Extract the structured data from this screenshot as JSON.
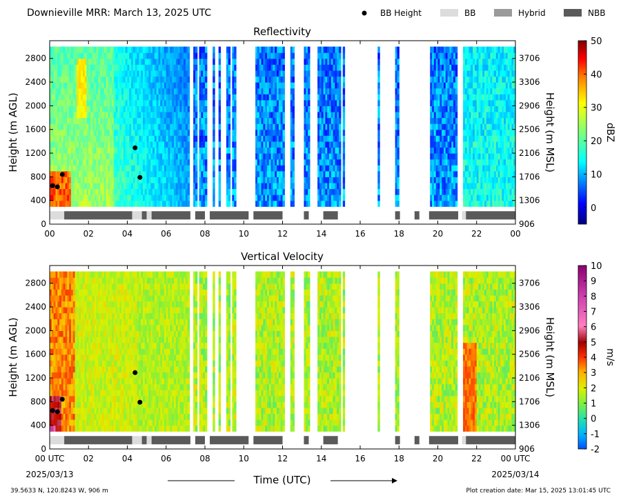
{
  "header": {
    "title": "Downieville MRR:  March 13, 2025 UTC",
    "legend": [
      {
        "label": "BB Height",
        "kind": "dot",
        "color": "#000000"
      },
      {
        "label": "BB",
        "kind": "bar",
        "color": "#dcdcdc"
      },
      {
        "label": "Hybrid",
        "kind": "bar",
        "color": "#9a9a9a"
      },
      {
        "label": "NBB",
        "kind": "bar",
        "color": "#5a5a5a"
      }
    ]
  },
  "footer": {
    "location": "39.5633 N, 120.8243 W, 906 m",
    "created": "Plot creation date: Mar 15, 2025 13:01:45 UTC",
    "xlabel": "Time (UTC)",
    "start_date": "2025/03/13",
    "end_date": "2025/03/14"
  },
  "chart_data": [
    {
      "type": "heatmap",
      "title": "Reflectivity",
      "xlabel": "",
      "ylabel": "Height (m AGL)",
      "ylabel_right": "Height (m MSL)",
      "x_ticks": [
        "00",
        "02",
        "04",
        "06",
        "08",
        "10",
        "12",
        "14",
        "16",
        "18",
        "20",
        "22",
        "00"
      ],
      "xlim_hours": [
        0,
        24
      ],
      "y_ticks": [
        0,
        400,
        800,
        1200,
        1600,
        2000,
        2400,
        2800
      ],
      "ylim": [
        0,
        3100
      ],
      "y_ticks_right": [
        906,
        1306,
        1706,
        2106,
        2506,
        2906,
        3306,
        3706
      ],
      "colorbar": {
        "label": "dBZ",
        "min": -5,
        "max": 50,
        "ticks": [
          0,
          10,
          20,
          30,
          40,
          50
        ],
        "colormap": "jet"
      },
      "bb_height_points": [
        {
          "hour": 0.15,
          "height": 650
        },
        {
          "hour": 0.4,
          "height": 630
        },
        {
          "hour": 0.65,
          "height": 840
        },
        {
          "hour": 4.4,
          "height": 1290
        },
        {
          "hour": 4.65,
          "height": 790
        }
      ],
      "classification": [
        {
          "start": 0.0,
          "end": 0.75,
          "class": "BB"
        },
        {
          "start": 0.75,
          "end": 4.25,
          "class": "NBB"
        },
        {
          "start": 4.25,
          "end": 4.75,
          "class": "BB"
        },
        {
          "start": 4.75,
          "end": 5.0,
          "class": "NBB"
        },
        {
          "start": 5.0,
          "end": 5.25,
          "class": "BB"
        },
        {
          "start": 5.25,
          "end": 7.25,
          "class": "NBB"
        },
        {
          "start": 7.5,
          "end": 8.0,
          "class": "NBB"
        },
        {
          "start": 8.25,
          "end": 10.25,
          "class": "NBB"
        },
        {
          "start": 10.5,
          "end": 12.0,
          "class": "NBB"
        },
        {
          "start": 13.1,
          "end": 13.35,
          "class": "NBB"
        },
        {
          "start": 14.1,
          "end": 14.85,
          "class": "NBB"
        },
        {
          "start": 17.8,
          "end": 18.05,
          "class": "NBB"
        },
        {
          "start": 18.8,
          "end": 19.05,
          "class": "NBB"
        },
        {
          "start": 19.55,
          "end": 21.05,
          "class": "NBB"
        },
        {
          "start": 21.25,
          "end": 21.45,
          "class": "BB"
        },
        {
          "start": 21.45,
          "end": 24.0,
          "class": "NBB"
        }
      ],
      "coverage": [
        {
          "start": 0.0,
          "end": 7.15
        },
        {
          "start": 7.4,
          "end": 7.55
        },
        {
          "start": 7.7,
          "end": 8.05
        },
        {
          "start": 8.35,
          "end": 8.5
        },
        {
          "start": 8.65,
          "end": 8.8
        },
        {
          "start": 9.05,
          "end": 9.25
        },
        {
          "start": 9.4,
          "end": 9.55
        },
        {
          "start": 10.55,
          "end": 12.05
        },
        {
          "start": 12.4,
          "end": 12.55
        },
        {
          "start": 13.05,
          "end": 13.35
        },
        {
          "start": 13.8,
          "end": 14.95
        },
        {
          "start": 15.1,
          "end": 15.2
        },
        {
          "start": 16.9,
          "end": 17.0
        },
        {
          "start": 17.75,
          "end": 18.0
        },
        {
          "start": 19.6,
          "end": 21.05
        },
        {
          "start": 21.3,
          "end": 24.0
        }
      ]
    },
    {
      "type": "heatmap",
      "title": "Vertical Velocity",
      "xlabel": "",
      "ylabel": "Height (m AGL)",
      "ylabel_right": "Height (m MSL)",
      "x_ticks": [
        "00 UTC",
        "02",
        "04",
        "06",
        "08",
        "10",
        "12",
        "14",
        "16",
        "18",
        "20",
        "22",
        "00 UTC"
      ],
      "xlim_hours": [
        0,
        24
      ],
      "y_ticks": [
        0,
        400,
        800,
        1200,
        1600,
        2000,
        2400,
        2800
      ],
      "ylim": [
        0,
        3100
      ],
      "y_ticks_right": [
        906,
        1306,
        1706,
        2106,
        2506,
        2906,
        3306,
        3706
      ],
      "colorbar": {
        "label": "m/s",
        "min": -2,
        "max": 10,
        "ticks": [
          -2,
          -1,
          0,
          1,
          2,
          3,
          4,
          5,
          6,
          7,
          8,
          9,
          10
        ],
        "colormap": "velocity"
      },
      "bb_height_points": [
        {
          "hour": 0.15,
          "height": 650
        },
        {
          "hour": 0.4,
          "height": 630
        },
        {
          "hour": 0.65,
          "height": 840
        },
        {
          "hour": 4.4,
          "height": 1290
        },
        {
          "hour": 4.65,
          "height": 790
        }
      ],
      "classification": [
        {
          "start": 0.0,
          "end": 0.75,
          "class": "BB"
        },
        {
          "start": 0.75,
          "end": 4.25,
          "class": "NBB"
        },
        {
          "start": 4.25,
          "end": 4.75,
          "class": "BB"
        },
        {
          "start": 4.75,
          "end": 5.0,
          "class": "NBB"
        },
        {
          "start": 5.0,
          "end": 5.25,
          "class": "BB"
        },
        {
          "start": 5.25,
          "end": 7.25,
          "class": "NBB"
        },
        {
          "start": 7.5,
          "end": 8.0,
          "class": "NBB"
        },
        {
          "start": 8.25,
          "end": 10.25,
          "class": "NBB"
        },
        {
          "start": 10.5,
          "end": 12.0,
          "class": "NBB"
        },
        {
          "start": 13.1,
          "end": 13.35,
          "class": "NBB"
        },
        {
          "start": 14.1,
          "end": 14.85,
          "class": "NBB"
        },
        {
          "start": 17.8,
          "end": 18.05,
          "class": "NBB"
        },
        {
          "start": 18.8,
          "end": 19.05,
          "class": "NBB"
        },
        {
          "start": 19.55,
          "end": 21.05,
          "class": "NBB"
        },
        {
          "start": 21.25,
          "end": 21.45,
          "class": "BB"
        },
        {
          "start": 21.45,
          "end": 24.0,
          "class": "NBB"
        }
      ],
      "coverage": [
        {
          "start": 0.0,
          "end": 7.15
        },
        {
          "start": 7.4,
          "end": 7.55
        },
        {
          "start": 7.7,
          "end": 8.05
        },
        {
          "start": 8.35,
          "end": 8.5
        },
        {
          "start": 8.65,
          "end": 8.8
        },
        {
          "start": 9.05,
          "end": 9.25
        },
        {
          "start": 9.4,
          "end": 9.55
        },
        {
          "start": 10.55,
          "end": 12.05
        },
        {
          "start": 12.4,
          "end": 12.55
        },
        {
          "start": 13.05,
          "end": 13.35
        },
        {
          "start": 13.8,
          "end": 14.95
        },
        {
          "start": 15.1,
          "end": 15.2
        },
        {
          "start": 16.9,
          "end": 17.0
        },
        {
          "start": 17.75,
          "end": 18.0
        },
        {
          "start": 19.6,
          "end": 21.05
        },
        {
          "start": 21.3,
          "end": 24.0
        }
      ]
    }
  ]
}
